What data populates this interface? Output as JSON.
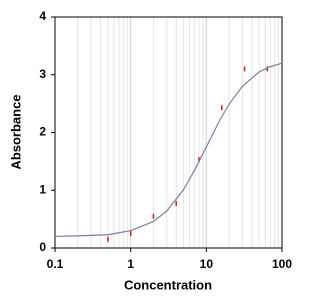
{
  "chart_data": {
    "type": "scatter",
    "x_label": "Concentration",
    "y_label": "Absorbance",
    "xscale": "log",
    "xlim": [
      0.1,
      100
    ],
    "ylim": [
      0,
      4
    ],
    "xticks": [
      0.1,
      1,
      10,
      100
    ],
    "xminorticks": [
      0.2,
      0.3,
      0.4,
      0.5,
      0.6,
      0.7,
      0.8,
      0.9,
      2,
      3,
      4,
      5,
      6,
      7,
      8,
      9,
      20,
      30,
      40,
      50,
      60,
      70,
      80,
      90
    ],
    "yticks": [
      0,
      1,
      2,
      3,
      4
    ],
    "xgrid": true,
    "series": [
      {
        "mode": "markers",
        "color": "#e02020",
        "x": [
          0.5,
          1,
          2,
          4,
          8,
          16,
          32,
          64
        ],
        "values": [
          0.15,
          0.25,
          0.55,
          0.77,
          1.53,
          2.43,
          3.1,
          3.1
        ]
      },
      {
        "mode": "line",
        "color": "#7a7fa8",
        "x": [
          0.1,
          0.2,
          0.5,
          1,
          2,
          3,
          5,
          7,
          10,
          15,
          20,
          30,
          50,
          70,
          100
        ],
        "values": [
          0.2,
          0.21,
          0.23,
          0.3,
          0.46,
          0.64,
          1.01,
          1.35,
          1.75,
          2.21,
          2.49,
          2.8,
          3.05,
          3.14,
          3.2
        ]
      }
    ]
  }
}
